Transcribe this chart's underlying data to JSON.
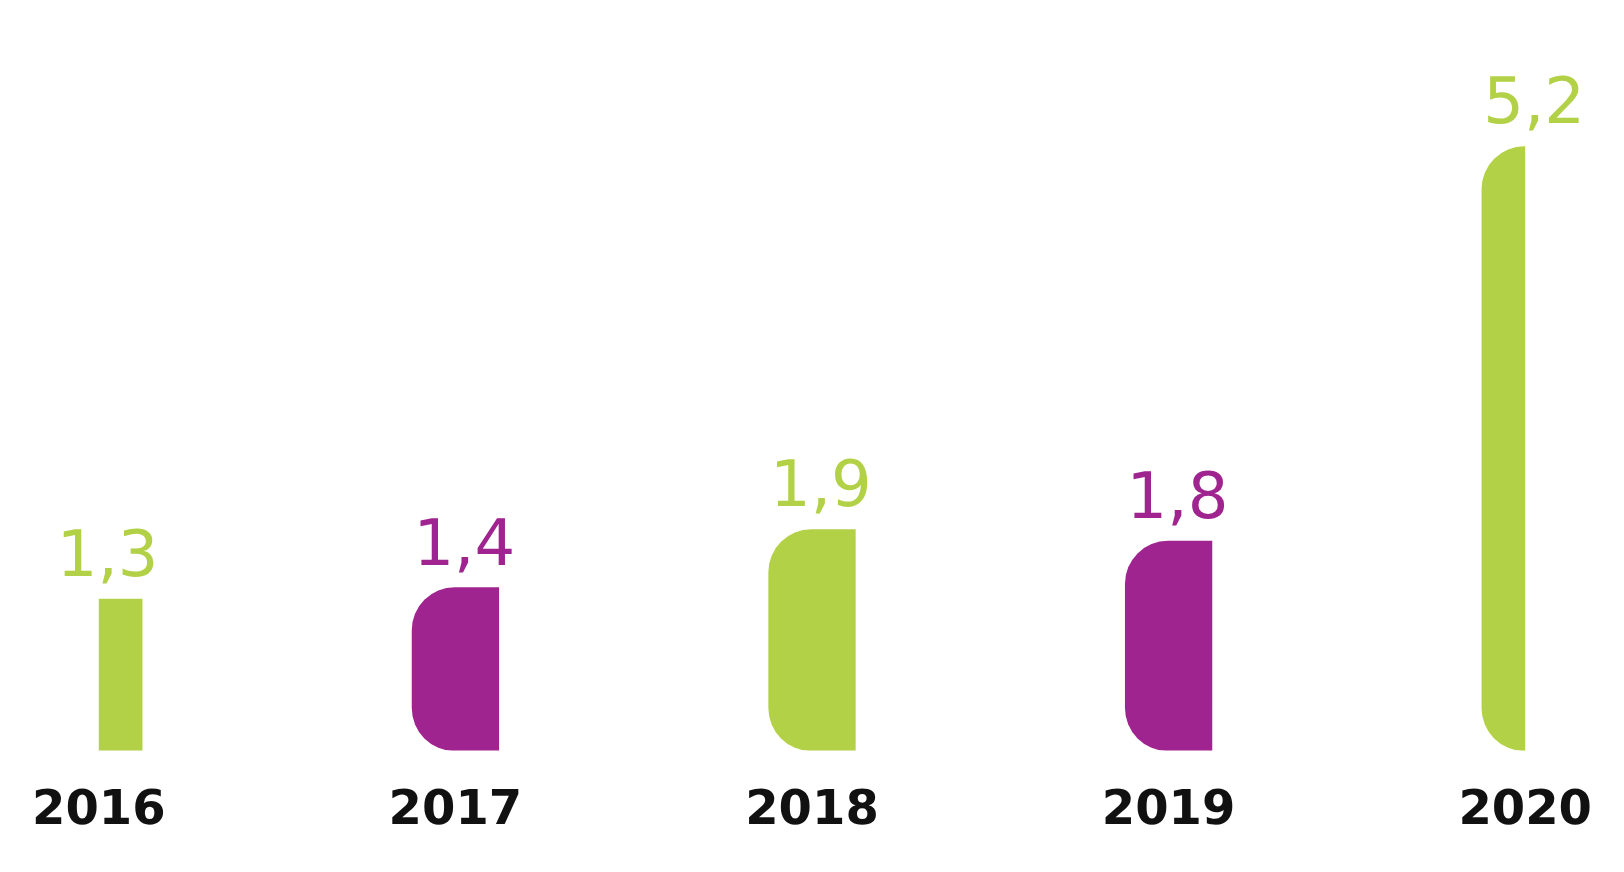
{
  "chart_data": {
    "type": "bar",
    "categories": [
      "2016",
      "2017",
      "2018",
      "2019",
      "2020"
    ],
    "values": [
      1.3,
      1.4,
      1.9,
      1.8,
      5.2
    ],
    "colors": [
      "#b2d147",
      "#a0248f",
      "#b2d147",
      "#a0248f",
      "#b2d147"
    ],
    "value_labels": [
      "1,3",
      "1,4",
      "1,9",
      "1,8",
      "5,2"
    ],
    "grid": false,
    "legend": false
  }
}
